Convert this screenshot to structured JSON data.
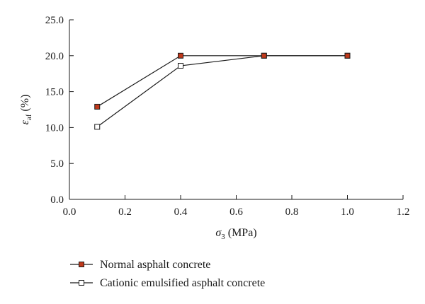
{
  "chart_data": {
    "type": "line",
    "xlabel": {
      "symbol": "σ",
      "sub": "3",
      "unit": " (MPa)"
    },
    "ylabel": {
      "symbol": "ε",
      "sub": "af",
      "unit": " (%)"
    },
    "xlim": [
      0.0,
      1.2
    ],
    "ylim": [
      0.0,
      25.0
    ],
    "xticks": [
      0.0,
      0.2,
      0.4,
      0.6,
      0.8,
      1.0,
      1.2
    ],
    "xtick_labels": [
      "0.0",
      "0.2",
      "0.4",
      "0.6",
      "0.8",
      "1.0",
      "1.2"
    ],
    "yticks": [
      0.0,
      5.0,
      10.0,
      15.0,
      20.0,
      25.0
    ],
    "ytick_labels": [
      "0.0",
      "5.0",
      "10.0",
      "15.0",
      "20.0",
      "25.0"
    ],
    "grid": false,
    "legend_position": "bottom",
    "series": [
      {
        "name": "Normal asphalt concrete",
        "marker": "filled-square",
        "marker_color": "#c0391b",
        "line_color": "#1a1a1a",
        "x": [
          0.1,
          0.4,
          0.7,
          1.0
        ],
        "y": [
          12.9,
          20.0,
          20.0,
          20.0
        ]
      },
      {
        "name": "Cationic emulsified asphalt concrete",
        "marker": "open-square",
        "marker_color": "#ffffff",
        "line_color": "#1a1a1a",
        "x": [
          0.1,
          0.4,
          0.7,
          1.0
        ],
        "y": [
          10.1,
          18.6,
          20.0,
          20.0
        ]
      }
    ]
  }
}
